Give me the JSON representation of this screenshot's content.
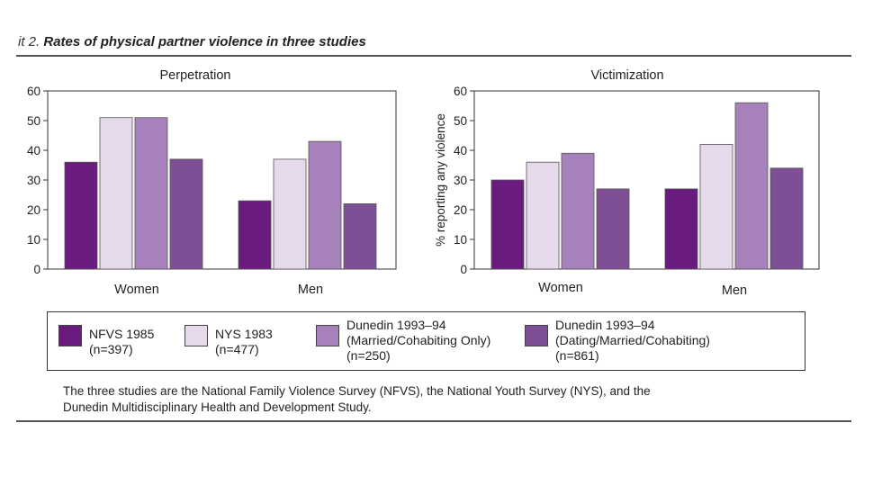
{
  "exhibit": {
    "prefix": "it 2.",
    "title": "Rates of physical partner violence in three studies"
  },
  "chart_data": [
    {
      "type": "bar",
      "title": "Perpetration",
      "categories": [
        "Women",
        "Men"
      ],
      "ylabel": "",
      "ylim": [
        0,
        60
      ],
      "yticks": [
        0,
        10,
        20,
        30,
        40,
        50,
        60
      ],
      "series": [
        {
          "name": "NFVS 1985 (n=397)",
          "color": "#6a1b7e",
          "values": [
            36,
            23
          ]
        },
        {
          "name": "NYS 1983 (n=477)",
          "color": "#e6d9ec",
          "values": [
            51,
            37
          ]
        },
        {
          "name": "Dunedin 1993–94 (Married/Cohabiting Only) (n=250)",
          "color": "#a681bb",
          "values": [
            51,
            43
          ]
        },
        {
          "name": "Dunedin 1993–94 (Dating/Married/Cohabiting) (n=861)",
          "color": "#7e4f95",
          "values": [
            37,
            22
          ]
        }
      ]
    },
    {
      "type": "bar",
      "title": "Victimization",
      "categories": [
        "Women",
        "Men"
      ],
      "ylabel": "% reporting any violence",
      "ylim": [
        0,
        60
      ],
      "yticks": [
        0,
        10,
        20,
        30,
        40,
        50,
        60
      ],
      "series": [
        {
          "name": "NFVS 1985 (n=397)",
          "color": "#6a1b7e",
          "values": [
            30,
            27
          ]
        },
        {
          "name": "NYS 1983 (n=477)",
          "color": "#e6d9ec",
          "values": [
            36,
            42
          ]
        },
        {
          "name": "Dunedin 1993–94 (Married/Cohabiting Only) (n=250)",
          "color": "#a681bb",
          "values": [
            39,
            56
          ]
        },
        {
          "name": "Dunedin 1993–94 (Dating/Married/Cohabiting) (n=861)",
          "color": "#7e4f95",
          "values": [
            27,
            34
          ]
        }
      ]
    }
  ],
  "legend": [
    {
      "lines": [
        "NFVS 1985",
        "(n=397)"
      ],
      "color": "#6a1b7e"
    },
    {
      "lines": [
        "NYS 1983",
        "(n=477)"
      ],
      "color": "#e6d9ec"
    },
    {
      "lines": [
        "Dunedin 1993–94",
        "(Married/Cohabiting Only)",
        "(n=250)"
      ],
      "color": "#a681bb"
    },
    {
      "lines": [
        "Dunedin 1993–94",
        "(Dating/Married/Cohabiting)",
        "(n=861)"
      ],
      "color": "#7e4f95"
    }
  ],
  "note": {
    "line1": "The three studies are the National Family Violence Survey (NFVS), the National Youth Survey (NYS), and the",
    "line2": "Dunedin Multidisciplinary Health and Development Study."
  }
}
